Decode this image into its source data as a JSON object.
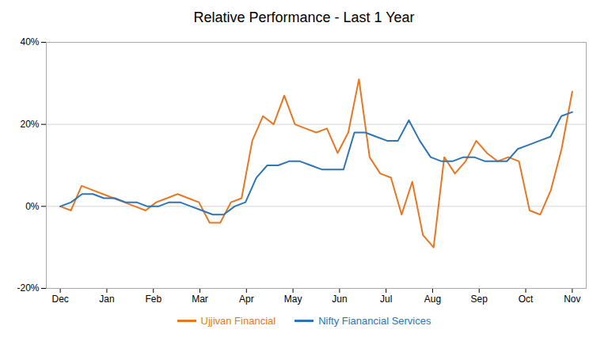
{
  "chart_data": {
    "type": "line",
    "title": "Relative Performance - Last 1 Year",
    "xlim": [
      -0.3,
      11.3
    ],
    "xticks": [
      {
        "value": 0,
        "label": "Dec"
      },
      {
        "value": 1,
        "label": "Jan"
      },
      {
        "value": 2,
        "label": "Feb"
      },
      {
        "value": 3,
        "label": "Mar"
      },
      {
        "value": 4,
        "label": "Apr"
      },
      {
        "value": 5,
        "label": "May"
      },
      {
        "value": 6,
        "label": "Jun"
      },
      {
        "value": 7,
        "label": "Jul"
      },
      {
        "value": 8,
        "label": "Aug"
      },
      {
        "value": 9,
        "label": "Sep"
      },
      {
        "value": 10,
        "label": "Oct"
      },
      {
        "value": 11,
        "label": "Nov"
      }
    ],
    "ylim": [
      -20,
      40
    ],
    "yticks": [
      {
        "value": -20,
        "label": "-20%"
      },
      {
        "value": 0,
        "label": "0%"
      },
      {
        "value": 20,
        "label": "20%"
      },
      {
        "value": 40,
        "label": "40%"
      }
    ],
    "grid": true,
    "legend": "bottom",
    "series": [
      {
        "name": "Ujjivan Financial",
        "color": "#E87722",
        "x": [
          0,
          0.229167,
          0.458333,
          0.6875,
          0.916667,
          1.145833,
          1.375,
          1.604167,
          1.833333,
          2.0625,
          2.291667,
          2.520833,
          2.75,
          2.979167,
          3.208333,
          3.4375,
          3.666667,
          3.895833,
          4.125,
          4.354167,
          4.583333,
          4.8125,
          5.041667,
          5.270833,
          5.5,
          5.729167,
          5.958333,
          6.1875,
          6.416667,
          6.645833,
          6.875,
          7.104167,
          7.333333,
          7.5625,
          7.791667,
          8.020833,
          8.25,
          8.479167,
          8.708333,
          8.9375,
          9.166667,
          9.395833,
          9.625,
          9.854167,
          10.083333,
          10.3125,
          10.541667,
          10.770833,
          11
        ],
        "values": [
          0,
          -1,
          5,
          4,
          3,
          2,
          1,
          0,
          -1,
          1,
          2,
          3,
          2,
          1,
          -4,
          -4,
          1,
          2,
          16,
          22,
          20,
          27,
          20,
          19,
          18,
          19,
          13,
          18,
          31,
          12,
          8,
          7,
          -2,
          6,
          -7,
          -10,
          12,
          8,
          11,
          16,
          13,
          11,
          12,
          11,
          -1,
          -2,
          4,
          14,
          28
        ]
      },
      {
        "name": "Nifty Fianancial Services",
        "color": "#2E75B6",
        "x": [
          0,
          0.234043,
          0.468085,
          0.702128,
          0.93617,
          1.170213,
          1.404255,
          1.638298,
          1.87234,
          2.106383,
          2.340426,
          2.574468,
          2.808511,
          3.042553,
          3.276596,
          3.510638,
          3.744681,
          3.978723,
          4.212766,
          4.446809,
          4.680851,
          4.914894,
          5.148936,
          5.382979,
          5.617021,
          5.851064,
          6.085106,
          6.319149,
          6.553191,
          6.787234,
          7.021277,
          7.255319,
          7.489362,
          7.723404,
          7.957447,
          8.191489,
          8.425532,
          8.659574,
          8.893617,
          9.12766,
          9.361702,
          9.595745,
          9.829787,
          10.06383,
          10.297872,
          10.531915,
          10.765957,
          11
        ],
        "values": [
          0,
          1,
          3,
          3,
          2,
          2,
          1,
          1,
          0,
          0,
          1,
          1,
          0,
          -1,
          -2,
          -2,
          0,
          1,
          7,
          10,
          10,
          11,
          11,
          10,
          9,
          9,
          9,
          18,
          18,
          17,
          16,
          16,
          21,
          16,
          12,
          11,
          11,
          12,
          12,
          11,
          11,
          11,
          14,
          15,
          16,
          17,
          22,
          23
        ]
      }
    ]
  }
}
